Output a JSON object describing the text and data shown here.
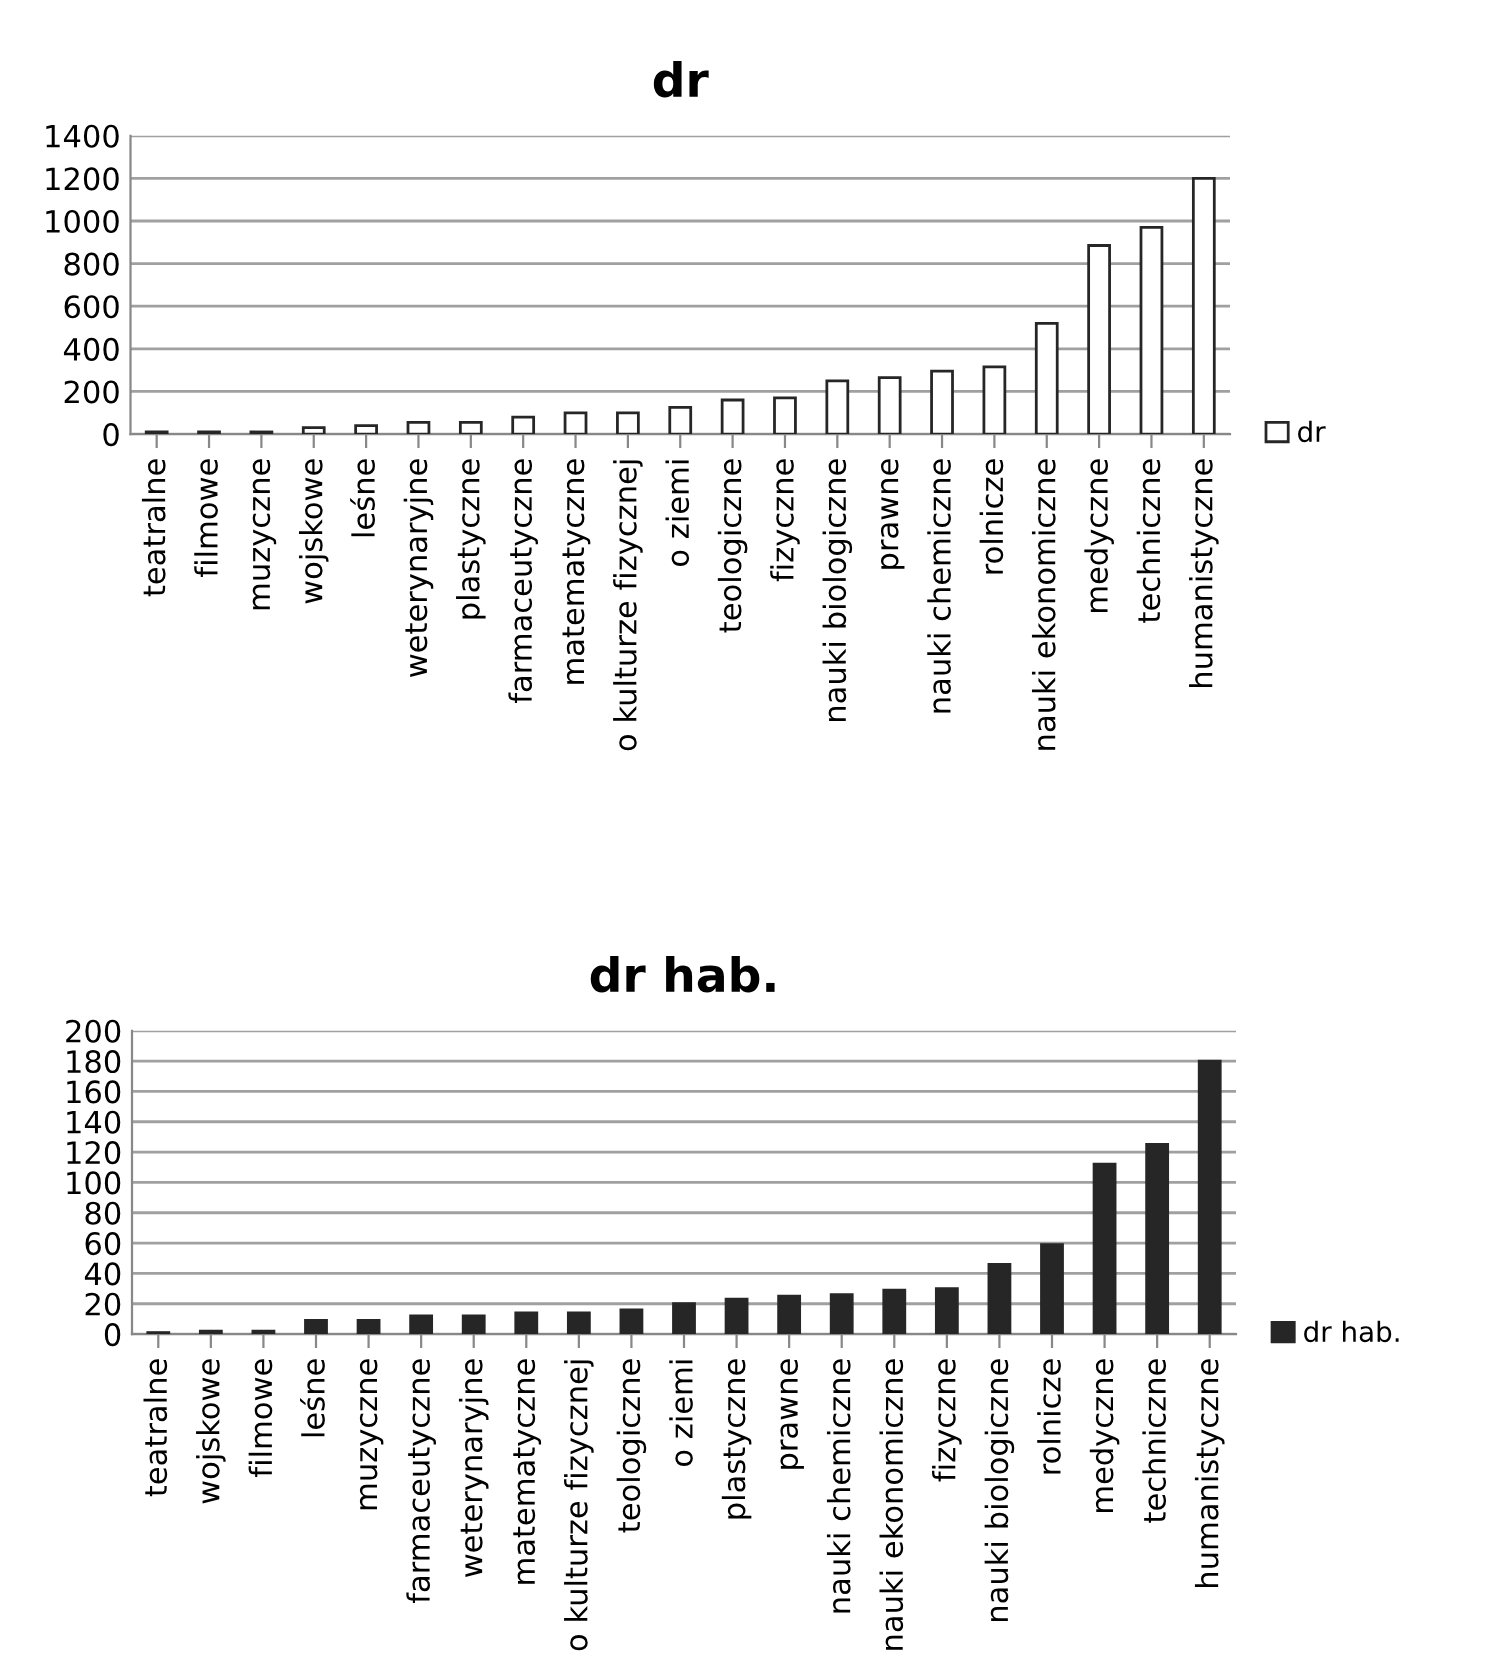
{
  "chart_data": [
    {
      "type": "bar",
      "title": "dr",
      "categories": [
        "teatralne",
        "filmowe",
        "muzyczne",
        "wojskowe",
        "leśne",
        "weterynaryjne",
        "plastyczne",
        "farmaceutyczne",
        "matematyczne",
        "o kulturze fizycznej",
        "o ziemi",
        "teologiczne",
        "fizyczne",
        "nauki biologiczne",
        "prawne",
        "nauki chemiczne",
        "rolnicze",
        "nauki ekonomiczne",
        "medyczne",
        "techniczne",
        "humanistyczne"
      ],
      "series": [
        {
          "name": "dr",
          "color": "#ffffff",
          "values": [
            10,
            10,
            10,
            30,
            40,
            55,
            55,
            80,
            100,
            100,
            125,
            160,
            170,
            250,
            265,
            295,
            315,
            520,
            885,
            970,
            1200
          ]
        }
      ],
      "ylim": [
        0,
        1400
      ],
      "yticks": [
        0,
        200,
        400,
        600,
        800,
        1000,
        1200,
        1400
      ],
      "grid": "y",
      "legend": "right"
    },
    {
      "type": "bar",
      "title": "dr hab.",
      "categories": [
        "teatralne",
        "wojskowe",
        "filmowe",
        "leśne",
        "muzyczne",
        "farmaceutyczne",
        "weterynaryjne",
        "matematyczne",
        "o kulturze fizycznej",
        "teologiczne",
        "o ziemi",
        "plastyczne",
        "prawne",
        "nauki chemiczne",
        "nauki ekonomiczne",
        "fizyczne",
        "nauki biologiczne",
        "rolnicze",
        "medyczne",
        "techniczne",
        "humanistyczne"
      ],
      "series": [
        {
          "name": "dr hab.",
          "color": "#262626",
          "values": [
            1,
            2,
            2,
            9,
            9,
            12,
            12,
            14,
            14,
            16,
            20,
            23,
            25,
            26,
            29,
            30,
            46,
            59,
            112,
            125,
            180
          ]
        }
      ],
      "ylim": [
        0,
        200
      ],
      "yticks": [
        0,
        20,
        40,
        60,
        80,
        100,
        120,
        140,
        160,
        180,
        200
      ],
      "grid": "y",
      "legend": "right"
    }
  ]
}
